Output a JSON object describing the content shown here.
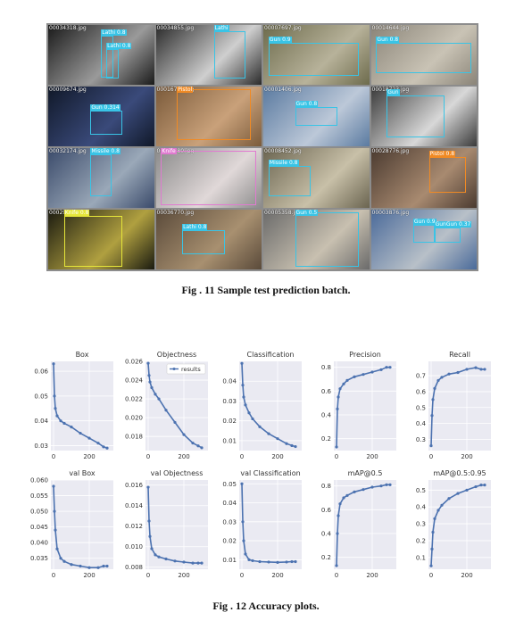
{
  "grid": {
    "tiles": [
      {
        "fname": "00034318.jpg",
        "bg": [
          "#1a1a1a",
          "#9a9a9a"
        ],
        "boxes": [
          {
            "label": "Lathi 0.8",
            "color": "#39c4e6"
          },
          {
            "label": "Lathi 0.8",
            "color": "#39c4e6"
          }
        ]
      },
      {
        "fname": "00034855.jpg",
        "bg": [
          "#2a2a2a",
          "#cfcfcf"
        ],
        "boxes": [
          {
            "label": "Lathi",
            "color": "#39c4e6"
          }
        ]
      },
      {
        "fname": "00007697.jpg",
        "bg": [
          "#6d6b4c",
          "#b7b29a"
        ],
        "boxes": [
          {
            "label": "Gun 0.9",
            "color": "#39c4e6"
          }
        ]
      },
      {
        "fname": "00014644.jpg",
        "bg": [
          "#8a8478",
          "#c9c3b5"
        ],
        "boxes": [
          {
            "label": "Gun 0.8",
            "color": "#39c4e6"
          }
        ]
      },
      {
        "fname": "00009674.jpg",
        "bg": [
          "#101828",
          "#3a4a7a"
        ],
        "boxes": [
          {
            "label": "Gun 0.314",
            "color": "#39c4e6"
          }
        ]
      },
      {
        "fname": "00016723.jpg",
        "bg": [
          "#7a5a3a",
          "#c9a17a"
        ],
        "boxes": [
          {
            "label": "Pistol",
            "color": "#f08a24"
          }
        ]
      },
      {
        "fname": "00001406.jpg",
        "bg": [
          "#5a7aa0",
          "#bcc8d8"
        ],
        "boxes": [
          {
            "label": "Gun 0.8",
            "color": "#39c4e6"
          }
        ]
      },
      {
        "fname": "00018723.jpg",
        "bg": [
          "#3a3a3a",
          "#d8d8d8"
        ],
        "boxes": [
          {
            "label": "Gun",
            "color": "#39c4e6"
          }
        ]
      },
      {
        "fname": "00032174.jpg",
        "bg": [
          "#3a4a6a",
          "#9aa8b8"
        ],
        "boxes": [
          {
            "label": "Missile 0.8",
            "color": "#39c4e6"
          }
        ]
      },
      {
        "fname": "00016780.jpg",
        "bg": [
          "#8a8a8a",
          "#e0d8d8"
        ],
        "boxes": [
          {
            "label": "Knife",
            "color": "#e07ad0"
          }
        ]
      },
      {
        "fname": "00008452.jpg",
        "bg": [
          "#6a6450",
          "#c8c0a8"
        ],
        "boxes": [
          {
            "label": "Missile 0.8",
            "color": "#39c4e6"
          }
        ]
      },
      {
        "fname": "00028776.jpg",
        "bg": [
          "#4a3a30",
          "#a88a70"
        ],
        "boxes": [
          {
            "label": "Pistol 0.8",
            "color": "#f08a24"
          }
        ]
      },
      {
        "fname": "00029610.jpg",
        "bg": [
          "#1a1a10",
          "#b0a040"
        ],
        "boxes": [
          {
            "label": "Knife 0.8",
            "color": "#e6e63a"
          }
        ]
      },
      {
        "fname": "00036770.jpg",
        "bg": [
          "#5a4a3a",
          "#a89070"
        ],
        "boxes": [
          {
            "label": "Lathi 0.8",
            "color": "#39c4e6"
          }
        ]
      },
      {
        "fname": "00005358.jpg",
        "bg": [
          "#6a6a6a",
          "#c8c0b0"
        ],
        "boxes": [
          {
            "label": "Gun 0.5",
            "color": "#39c4e6"
          }
        ]
      },
      {
        "fname": "00003876.jpg",
        "bg": [
          "#4a6a9a",
          "#b8c0c8"
        ],
        "boxes": [
          {
            "label": "Gun 0.9",
            "color": "#39c4e6"
          },
          {
            "label": "GunGun 0.37",
            "color": "#39c4e6"
          }
        ]
      }
    ]
  },
  "captions": {
    "fig11": "Fig . 11 Sample test prediction batch.",
    "fig12": "Fig . 12 Accuracy plots."
  },
  "chart_data": [
    {
      "type": "line",
      "title": "Box",
      "x": [
        0,
        5,
        10,
        20,
        40,
        60,
        100,
        150,
        200,
        250,
        280,
        300
      ],
      "values": [
        0.063,
        0.05,
        0.045,
        0.042,
        0.04,
        0.039,
        0.0375,
        0.035,
        0.033,
        0.031,
        0.0295,
        0.029
      ],
      "ylim": [
        0.028,
        0.064
      ],
      "yticks": [
        "0.06",
        "0.05",
        "0.04",
        "0.03"
      ],
      "ytickvals": [
        0.06,
        0.05,
        0.04,
        0.03
      ],
      "xticks": [
        "0",
        "200"
      ],
      "xtickvals": [
        0,
        200
      ]
    },
    {
      "type": "line",
      "title": "Objectness",
      "x": [
        0,
        5,
        10,
        20,
        40,
        60,
        100,
        150,
        200,
        250,
        280,
        300
      ],
      "values": [
        0.0258,
        0.0245,
        0.0238,
        0.0232,
        0.0225,
        0.022,
        0.0208,
        0.0195,
        0.0182,
        0.0173,
        0.017,
        0.0168
      ],
      "ylim": [
        0.0165,
        0.026
      ],
      "yticks": [
        "0.026",
        "0.024",
        "0.022",
        "0.020",
        "0.018"
      ],
      "ytickvals": [
        0.026,
        0.024,
        0.022,
        0.02,
        0.018
      ],
      "xticks": [
        "0",
        "200"
      ],
      "xtickvals": [
        0,
        200
      ],
      "legend": "results"
    },
    {
      "type": "line",
      "title": "Classification",
      "x": [
        0,
        5,
        10,
        20,
        40,
        60,
        100,
        150,
        200,
        250,
        280,
        300
      ],
      "values": [
        0.049,
        0.038,
        0.032,
        0.028,
        0.024,
        0.021,
        0.017,
        0.0135,
        0.011,
        0.0085,
        0.0075,
        0.007
      ],
      "ylim": [
        0.005,
        0.05
      ],
      "yticks": [
        "0.04",
        "0.03",
        "0.02",
        "0.01"
      ],
      "ytickvals": [
        0.04,
        0.03,
        0.02,
        0.01
      ],
      "xticks": [
        "0",
        "200"
      ],
      "xtickvals": [
        0,
        200
      ]
    },
    {
      "type": "line",
      "title": "Precision",
      "x": [
        0,
        5,
        10,
        20,
        40,
        60,
        100,
        150,
        200,
        250,
        280,
        300
      ],
      "values": [
        0.13,
        0.45,
        0.55,
        0.62,
        0.66,
        0.69,
        0.72,
        0.74,
        0.76,
        0.78,
        0.8,
        0.8
      ],
      "ylim": [
        0.1,
        0.85
      ],
      "yticks": [
        "0.8",
        "0.6",
        "0.4",
        "0.2"
      ],
      "ytickvals": [
        0.8,
        0.6,
        0.4,
        0.2
      ],
      "xticks": [
        "0",
        "200"
      ],
      "xtickvals": [
        0,
        200
      ]
    },
    {
      "type": "line",
      "title": "Recall",
      "x": [
        0,
        5,
        10,
        20,
        40,
        60,
        100,
        150,
        200,
        250,
        280,
        300
      ],
      "values": [
        0.26,
        0.45,
        0.55,
        0.62,
        0.67,
        0.69,
        0.71,
        0.72,
        0.74,
        0.75,
        0.74,
        0.74
      ],
      "ylim": [
        0.23,
        0.79
      ],
      "yticks": [
        "0.7",
        "0.6",
        "0.5",
        "0.4",
        "0.3"
      ],
      "ytickvals": [
        0.7,
        0.6,
        0.5,
        0.4,
        0.3
      ],
      "xticks": [
        "0",
        "200"
      ],
      "xtickvals": [
        0,
        200
      ]
    },
    {
      "type": "line",
      "title": "val Box",
      "x": [
        0,
        5,
        10,
        20,
        40,
        60,
        100,
        150,
        200,
        250,
        280,
        300
      ],
      "values": [
        0.058,
        0.05,
        0.044,
        0.038,
        0.035,
        0.034,
        0.033,
        0.0325,
        0.032,
        0.032,
        0.0325,
        0.0325
      ],
      "ylim": [
        0.0315,
        0.06
      ],
      "yticks": [
        "0.060",
        "0.055",
        "0.050",
        "0.045",
        "0.040",
        "0.035"
      ],
      "ytickvals": [
        0.06,
        0.055,
        0.05,
        0.045,
        0.04,
        0.035
      ],
      "xticks": [
        "0",
        "200"
      ],
      "xtickvals": [
        0,
        200
      ]
    },
    {
      "type": "line",
      "title": "val Objectness",
      "x": [
        0,
        5,
        10,
        20,
        40,
        60,
        100,
        150,
        200,
        250,
        280,
        300
      ],
      "values": [
        0.0158,
        0.0125,
        0.011,
        0.0098,
        0.0092,
        0.009,
        0.0088,
        0.0086,
        0.0085,
        0.0084,
        0.0084,
        0.0084
      ],
      "ylim": [
        0.0078,
        0.0165
      ],
      "yticks": [
        "0.016",
        "0.014",
        "0.012",
        "0.010",
        "0.008"
      ],
      "ytickvals": [
        0.016,
        0.014,
        0.012,
        0.01,
        0.008
      ],
      "xticks": [
        "0",
        "200"
      ],
      "xtickvals": [
        0,
        200
      ]
    },
    {
      "type": "line",
      "title": "val Classification",
      "x": [
        0,
        5,
        10,
        20,
        40,
        60,
        100,
        150,
        200,
        250,
        280,
        300
      ],
      "values": [
        0.05,
        0.03,
        0.02,
        0.013,
        0.01,
        0.0095,
        0.009,
        0.0088,
        0.0086,
        0.0088,
        0.009,
        0.009
      ],
      "ylim": [
        0.005,
        0.052
      ],
      "yticks": [
        "0.05",
        "0.04",
        "0.03",
        "0.02",
        "0.01"
      ],
      "ytickvals": [
        0.05,
        0.04,
        0.03,
        0.02,
        0.01
      ],
      "xticks": [
        "0",
        "200"
      ],
      "xtickvals": [
        0,
        200
      ]
    },
    {
      "type": "line",
      "title": "mAP@0.5",
      "x": [
        0,
        5,
        10,
        20,
        40,
        60,
        100,
        150,
        200,
        250,
        280,
        300
      ],
      "values": [
        0.13,
        0.4,
        0.55,
        0.65,
        0.7,
        0.72,
        0.75,
        0.77,
        0.79,
        0.8,
        0.81,
        0.81
      ],
      "ylim": [
        0.1,
        0.85
      ],
      "yticks": [
        "0.8",
        "0.6",
        "0.4",
        "0.2"
      ],
      "ytickvals": [
        0.8,
        0.6,
        0.4,
        0.2
      ],
      "xticks": [
        "0",
        "200"
      ],
      "xtickvals": [
        0,
        200
      ]
    },
    {
      "type": "line",
      "title": "mAP@0.5:0.95",
      "x": [
        0,
        5,
        10,
        20,
        40,
        60,
        100,
        150,
        200,
        250,
        280,
        300
      ],
      "values": [
        0.05,
        0.15,
        0.25,
        0.33,
        0.38,
        0.41,
        0.45,
        0.48,
        0.5,
        0.52,
        0.53,
        0.53
      ],
      "ylim": [
        0.03,
        0.56
      ],
      "yticks": [
        "0.5",
        "0.4",
        "0.3",
        "0.2",
        "0.1"
      ],
      "ytickvals": [
        0.5,
        0.4,
        0.3,
        0.2,
        0.1
      ],
      "xticks": [
        "0",
        "200"
      ],
      "xtickvals": [
        0,
        200
      ]
    }
  ]
}
